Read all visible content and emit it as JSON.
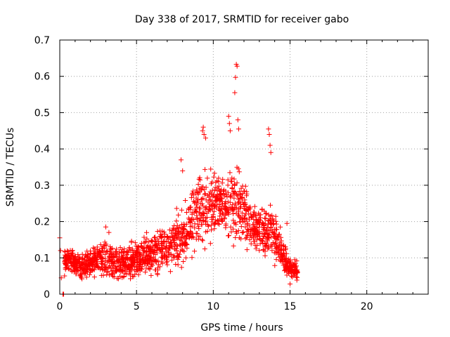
{
  "chart_data": {
    "type": "scatter",
    "title": "Day 338 of 2017, SRMTID for receiver gabo",
    "xlabel": "GPS time / hours",
    "ylabel": "SRMTID / TECUs",
    "xlim": [
      0,
      24
    ],
    "ylim": [
      0,
      0.7
    ],
    "x_ticks": [
      0,
      5,
      10,
      15,
      20
    ],
    "y_ticks": [
      0,
      0.1,
      0.2,
      0.3,
      0.4,
      0.5,
      0.6,
      0.7
    ],
    "x_tick_labels": [
      "0",
      "5",
      "10",
      "15",
      "20"
    ],
    "y_tick_labels": [
      "0",
      "0.1",
      "0.2",
      "0.3",
      "0.4",
      "0.5",
      "0.6",
      "0.7"
    ],
    "grid": true,
    "marker": "+",
    "color": "#ff0000",
    "envelope": {
      "x": [
        0,
        0.5,
        1,
        1.5,
        2,
        2.5,
        3,
        3.5,
        4,
        4.5,
        5,
        5.5,
        6,
        6.5,
        7,
        7.5,
        8,
        8.5,
        9,
        9.5,
        10,
        10.5,
        11,
        11.5,
        12,
        12.5,
        13,
        13.5,
        14,
        14.5,
        15,
        15.5
      ],
      "y_center": [
        0.09,
        0.095,
        0.085,
        0.075,
        0.085,
        0.09,
        0.095,
        0.09,
        0.085,
        0.09,
        0.095,
        0.105,
        0.11,
        0.12,
        0.13,
        0.14,
        0.16,
        0.19,
        0.23,
        0.24,
        0.25,
        0.24,
        0.25,
        0.26,
        0.22,
        0.19,
        0.18,
        0.17,
        0.16,
        0.11,
        0.07,
        0.065
      ],
      "y_spread": [
        0.03,
        0.03,
        0.03,
        0.03,
        0.035,
        0.04,
        0.045,
        0.04,
        0.035,
        0.035,
        0.04,
        0.045,
        0.05,
        0.05,
        0.055,
        0.06,
        0.07,
        0.07,
        0.08,
        0.09,
        0.07,
        0.07,
        0.08,
        0.09,
        0.07,
        0.06,
        0.06,
        0.06,
        0.06,
        0.04,
        0.025,
        0.02
      ]
    },
    "notable_points": [
      {
        "x": 0.0,
        "y": 0.155
      },
      {
        "x": 0.05,
        "y": 0.12
      },
      {
        "x": 0.1,
        "y": 0.045
      },
      {
        "x": 0.2,
        "y": 0.0
      },
      {
        "x": 0.25,
        "y": 0.0
      },
      {
        "x": 3.0,
        "y": 0.185
      },
      {
        "x": 3.2,
        "y": 0.17
      },
      {
        "x": 7.9,
        "y": 0.37
      },
      {
        "x": 8.0,
        "y": 0.34
      },
      {
        "x": 9.3,
        "y": 0.45
      },
      {
        "x": 9.35,
        "y": 0.46
      },
      {
        "x": 9.4,
        "y": 0.44
      },
      {
        "x": 9.5,
        "y": 0.43
      },
      {
        "x": 11.0,
        "y": 0.49
      },
      {
        "x": 11.05,
        "y": 0.47
      },
      {
        "x": 11.1,
        "y": 0.45
      },
      {
        "x": 11.4,
        "y": 0.555
      },
      {
        "x": 11.45,
        "y": 0.597
      },
      {
        "x": 11.5,
        "y": 0.633
      },
      {
        "x": 11.55,
        "y": 0.628
      },
      {
        "x": 11.6,
        "y": 0.48
      },
      {
        "x": 11.65,
        "y": 0.455
      },
      {
        "x": 13.6,
        "y": 0.455
      },
      {
        "x": 13.65,
        "y": 0.44
      },
      {
        "x": 13.7,
        "y": 0.41
      },
      {
        "x": 13.75,
        "y": 0.39
      },
      {
        "x": 14.8,
        "y": 0.195
      },
      {
        "x": 15.0,
        "y": 0.028
      }
    ]
  }
}
